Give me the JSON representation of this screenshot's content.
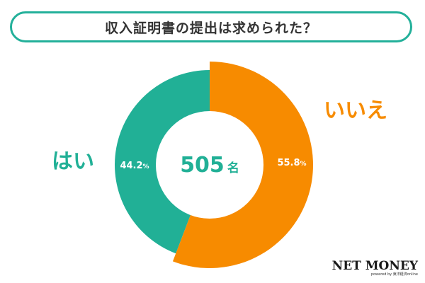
{
  "title": "収入証明書の提出は求められた？",
  "colors": {
    "yes": "#21b096",
    "no": "#f78b00",
    "border": "#23b09a",
    "text_dark": "#333333"
  },
  "chart_data": {
    "type": "pie",
    "title": "収入証明書の提出は求められた？",
    "total": "505",
    "total_unit": "名",
    "slices": [
      {
        "name": "はい",
        "value": 44.2,
        "label": "44.2",
        "unit": "%",
        "color": "#21b096"
      },
      {
        "name": "いいえ",
        "value": 55.8,
        "label": "55.8",
        "unit": "%",
        "color": "#f78b00"
      }
    ]
  },
  "logo": {
    "text": "NET MONEY",
    "sub": "powered by 東洋経済online"
  }
}
